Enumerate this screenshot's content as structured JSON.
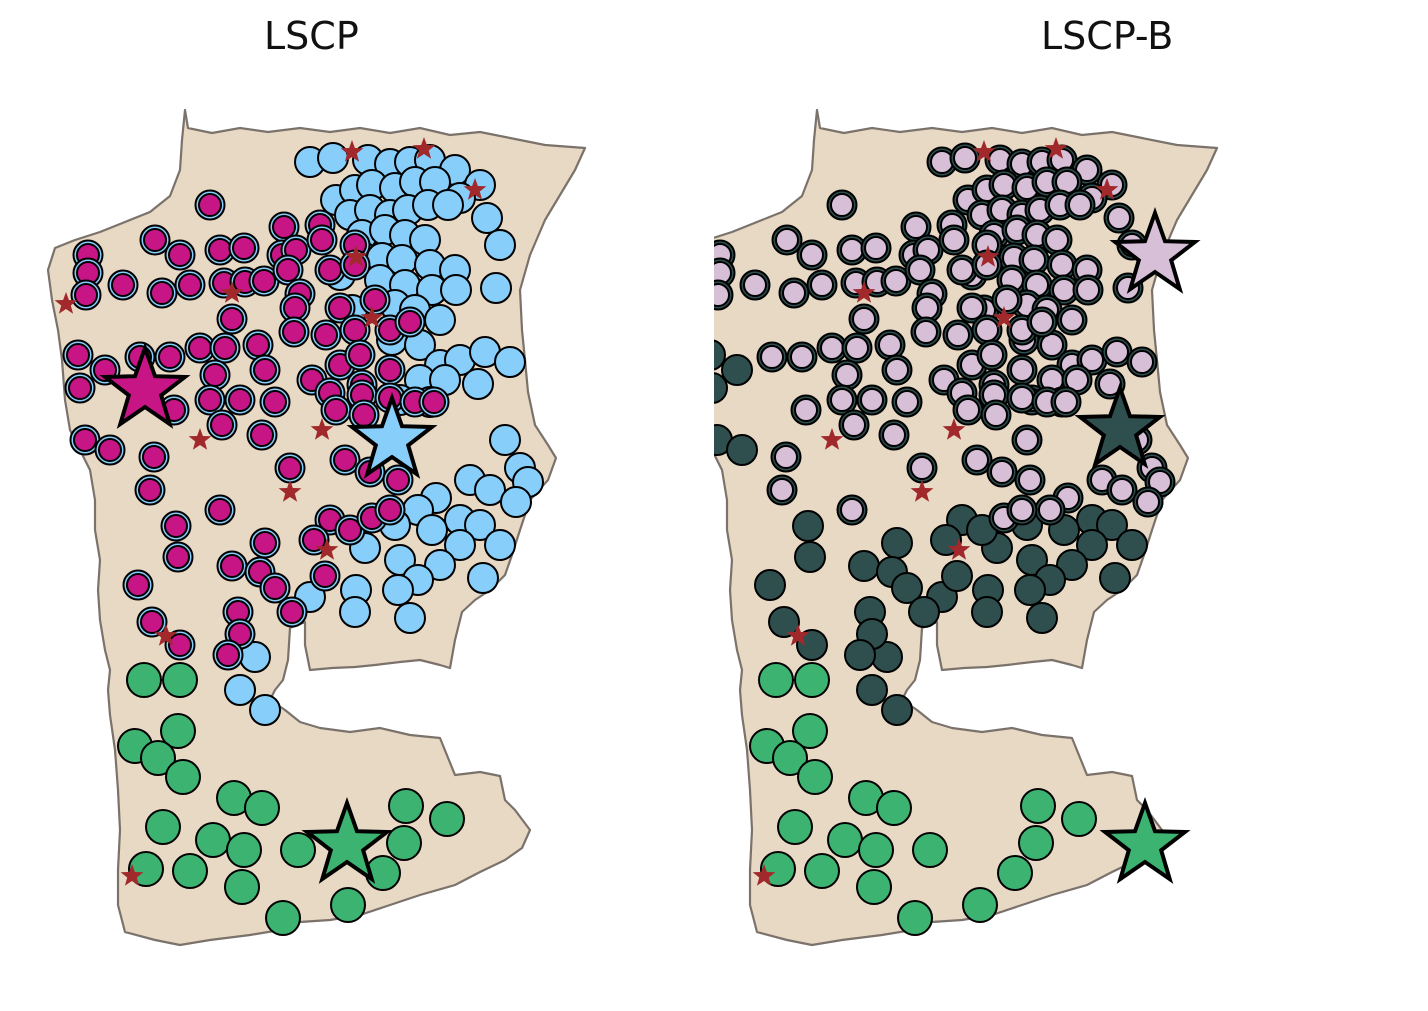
{
  "colors": {
    "land": "#e8d9c4",
    "border": "#7a726b",
    "marker_outline": "#000000",
    "facility_star": "#a1292c",
    "lscp_blue": "#87cefa",
    "lscp_magenta": "#c71585",
    "lscp_green": "#3cb371",
    "lscpb_pink": "#d8bfd8",
    "lscpb_slate": "#2f4f4f",
    "lscpb_green": "#3cb371"
  },
  "panels": [
    {
      "id": "lscp",
      "title": "LSCP"
    },
    {
      "id": "lscp-b",
      "title": "LSCP-B"
    }
  ]
}
